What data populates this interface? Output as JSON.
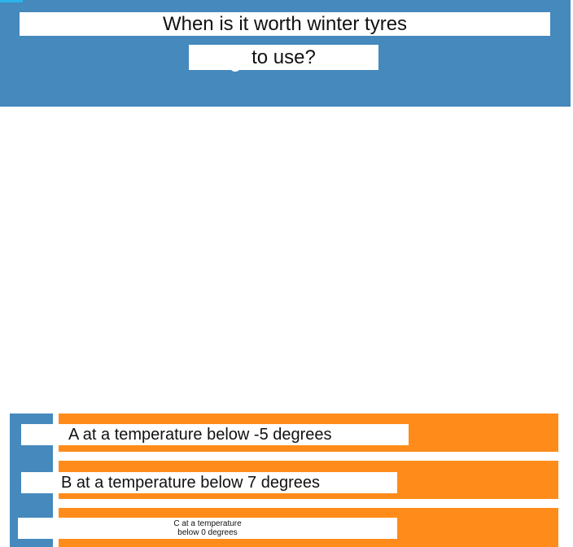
{
  "question": {
    "line1": "When is it worth winter tyres",
    "line2": "to use?"
  },
  "options": [
    {
      "label": "A at a temperature below -5 degrees"
    },
    {
      "label": "B at a temperature below 7 degrees"
    },
    {
      "label": "C at a temperature below 0 degrees"
    }
  ],
  "colors": {
    "header": "#4589bd",
    "option": "#ff8c1a",
    "accent": "#2bb5e8"
  }
}
